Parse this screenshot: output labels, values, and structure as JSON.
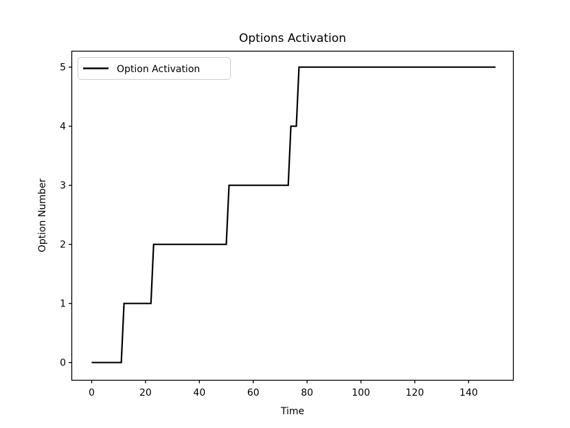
{
  "figure": {
    "background": "#ffffff"
  },
  "chart_data": {
    "type": "line",
    "subtype": "step",
    "title": "Options Activation",
    "xlabel": "Time",
    "ylabel": "Option Number",
    "x_ticks": [
      0,
      20,
      40,
      60,
      80,
      100,
      120,
      140
    ],
    "y_ticks": [
      0,
      1,
      2,
      3,
      4,
      5
    ],
    "xlim": [
      -7.4,
      156.6
    ],
    "ylim": [
      -0.3,
      5.27
    ],
    "grid": false,
    "line_color": "#000000",
    "line_width": 2.2,
    "spine_color": "#000000",
    "legend": {
      "position": "upper left",
      "items": [
        {
          "label": "Option Activation",
          "color": "#000000"
        }
      ]
    },
    "series": [
      {
        "name": "Option Activation",
        "color": "#000000",
        "points": [
          [
            0,
            0
          ],
          [
            11,
            0
          ],
          [
            12,
            1
          ],
          [
            22,
            1
          ],
          [
            23,
            2
          ],
          [
            50,
            2
          ],
          [
            51,
            3
          ],
          [
            73,
            3
          ],
          [
            74,
            4
          ],
          [
            76,
            4
          ],
          [
            77,
            5
          ],
          [
            150,
            5
          ]
        ]
      }
    ]
  }
}
